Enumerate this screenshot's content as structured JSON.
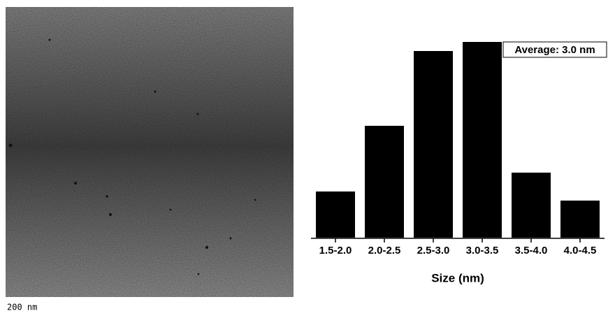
{
  "image": {
    "scale_label": "200 nm"
  },
  "chart_data": {
    "type": "bar",
    "xlabel": "Size (nm)",
    "annotation": "Average: 3.0 nm",
    "categories": [
      "1.5-2.0",
      "2.0-2.5",
      "2.5-3.0",
      "3.0-3.5",
      "3.5-4.0",
      "4.0-4.5"
    ],
    "values": [
      66,
      160,
      267,
      280,
      93,
      53
    ],
    "color": "#000000"
  }
}
